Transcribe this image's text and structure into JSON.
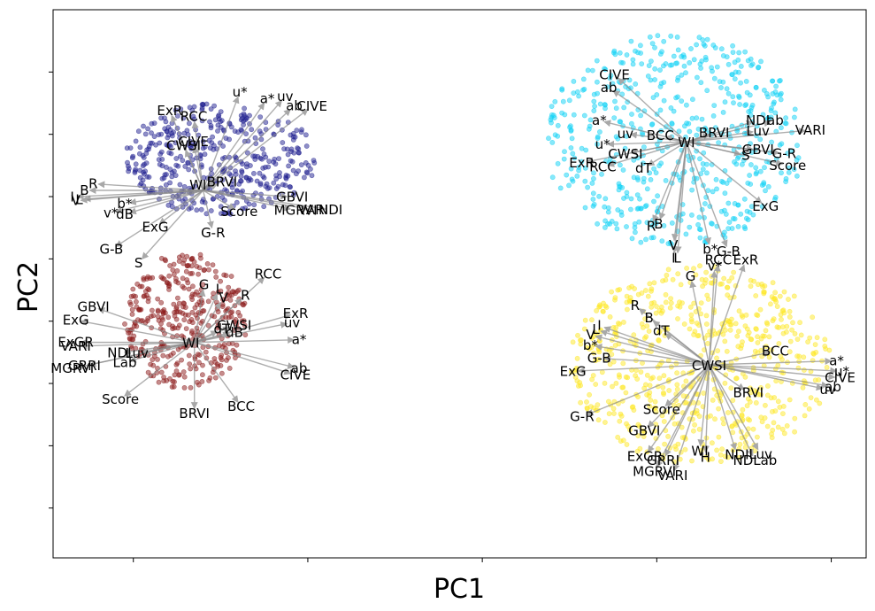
{
  "chart_data": {
    "type": "scatter",
    "title": "",
    "xlabel": "PC1",
    "ylabel": "PC2",
    "xlim": [
      -0.46,
      4.2
    ],
    "ylim": [
      -0.4,
      4.0
    ],
    "x_ticks": [
      0,
      1,
      2,
      3,
      4
    ],
    "y_ticks": [
      0,
      0.5,
      1,
      1.5,
      2,
      2.5,
      3,
      3.5
    ],
    "tick_labels_visible": false,
    "grid": false,
    "legend": "none",
    "arrow_color": "#8c8c8c",
    "series": [
      {
        "color": "#1f1f8f",
        "cx": 0.5,
        "cy": 2.8,
        "rx": 0.55,
        "ry": 0.45,
        "points": 420,
        "seed": 11
      },
      {
        "color": "#8b1a1a",
        "cx": 0.3,
        "cy": 1.5,
        "rx": 0.35,
        "ry": 0.55,
        "points": 380,
        "seed": 23
      },
      {
        "color": "#10d2f5",
        "cx": 3.1,
        "cy": 2.95,
        "rx": 0.75,
        "ry": 0.85,
        "points": 560,
        "seed": 37
      },
      {
        "color": "#fde725",
        "cx": 3.25,
        "cy": 1.15,
        "rx": 0.75,
        "ry": 0.8,
        "points": 640,
        "seed": 53
      }
    ],
    "biplots": [
      {
        "origin": [
          0.4,
          2.55
        ],
        "vectors": [
          {
            "label": "ExR",
            "x": 0.22,
            "y": 3.15
          },
          {
            "label": "RCC",
            "x": 0.35,
            "y": 3.1
          },
          {
            "label": "CIVE",
            "x": 0.35,
            "y": 2.9
          },
          {
            "label": "CWSI",
            "x": 0.3,
            "y": 2.87
          },
          {
            "label": "u*",
            "x": 0.6,
            "y": 3.3
          },
          {
            "label": "a*",
            "x": 0.75,
            "y": 3.25
          },
          {
            "label": "uv",
            "x": 0.85,
            "y": 3.27
          },
          {
            "label": "ab",
            "x": 0.9,
            "y": 3.2
          },
          {
            "label": "CIVE",
            "x": 1.0,
            "y": 3.2
          },
          {
            "label": "BRVI",
            "x": 0.48,
            "y": 2.6
          },
          {
            "label": "GBVI",
            "x": 0.88,
            "y": 2.5
          },
          {
            "label": "Score",
            "x": 0.58,
            "y": 2.4
          },
          {
            "label": "MGRVI",
            "x": 0.9,
            "y": 2.4
          },
          {
            "label": "VARI",
            "x": 1.0,
            "y": 2.4
          },
          {
            "label": "NDI",
            "x": 1.1,
            "y": 2.4
          },
          {
            "label": "G-R",
            "x": 0.45,
            "y": 2.25
          },
          {
            "label": "R",
            "x": -0.2,
            "y": 2.6
          },
          {
            "label": "B",
            "x": -0.25,
            "y": 2.55
          },
          {
            "label": "L",
            "x": -0.28,
            "y": 2.48
          },
          {
            "label": "I",
            "x": -0.32,
            "y": 2.5
          },
          {
            "label": "V",
            "x": -0.3,
            "y": 2.47
          },
          {
            "label": "b*",
            "x": -0.02,
            "y": 2.45
          },
          {
            "label": "v*",
            "x": -0.1,
            "y": 2.38
          },
          {
            "label": "dB",
            "x": -0.02,
            "y": 2.37
          },
          {
            "label": "ExG",
            "x": 0.15,
            "y": 2.28
          },
          {
            "label": "G-B",
            "x": -0.1,
            "y": 2.1
          },
          {
            "label": "S",
            "x": 0.05,
            "y": 2.0
          }
        ]
      },
      {
        "origin": [
          0.35,
          1.33
        ],
        "vectors": [
          {
            "label": "G",
            "x": 0.4,
            "y": 1.75
          },
          {
            "label": "L",
            "x": 0.48,
            "y": 1.72
          },
          {
            "label": "V",
            "x": 0.5,
            "y": 1.65
          },
          {
            "label": "R",
            "x": 0.62,
            "y": 1.68
          },
          {
            "label": "RCC",
            "x": 0.75,
            "y": 1.85
          },
          {
            "label": "ExR",
            "x": 0.9,
            "y": 1.55
          },
          {
            "label": "uv",
            "x": 0.88,
            "y": 1.48
          },
          {
            "label": "a*",
            "x": 0.92,
            "y": 1.35
          },
          {
            "label": "CWSI",
            "x": 0.55,
            "y": 1.45
          },
          {
            "label": "dT",
            "x": 0.48,
            "y": 1.42
          },
          {
            "label": "dB",
            "x": 0.55,
            "y": 1.4
          },
          {
            "label": "ab",
            "x": 0.92,
            "y": 1.13
          },
          {
            "label": "CIVE",
            "x": 0.9,
            "y": 1.08
          },
          {
            "label": "BCC",
            "x": 0.6,
            "y": 0.85
          },
          {
            "label": "BRVI",
            "x": 0.35,
            "y": 0.8
          },
          {
            "label": "Score",
            "x": -0.05,
            "y": 0.9
          },
          {
            "label": "GBVI",
            "x": -0.2,
            "y": 1.6
          },
          {
            "label": "ExG",
            "x": -0.3,
            "y": 1.5
          },
          {
            "label": "ExGR",
            "x": -0.3,
            "y": 1.33
          },
          {
            "label": "NDI",
            "x": -0.05,
            "y": 1.25
          },
          {
            "label": "Luv",
            "x": 0.05,
            "y": 1.25
          },
          {
            "label": "Lab",
            "x": -0.02,
            "y": 1.18
          },
          {
            "label": "GRRI",
            "x": -0.25,
            "y": 1.15
          },
          {
            "label": "MGRVI",
            "x": -0.32,
            "y": 1.13
          },
          {
            "label": "VARI",
            "x": -0.3,
            "y": 1.3
          }
        ]
      },
      {
        "origin": [
          3.17,
          2.94
        ],
        "vectors": [
          {
            "label": "CIVE",
            "x": 2.78,
            "y": 3.45
          },
          {
            "label": "ab",
            "x": 2.75,
            "y": 3.35
          },
          {
            "label": "a*",
            "x": 2.7,
            "y": 3.1
          },
          {
            "label": "uv",
            "x": 2.85,
            "y": 3.0
          },
          {
            "label": "u*",
            "x": 2.72,
            "y": 2.92
          },
          {
            "label": "BCC",
            "x": 3.05,
            "y": 2.98
          },
          {
            "label": "BRVI",
            "x": 3.3,
            "y": 3.0
          },
          {
            "label": "CWSI",
            "x": 2.85,
            "y": 2.85
          },
          {
            "label": "ExR",
            "x": 2.6,
            "y": 2.78
          },
          {
            "label": "RCC",
            "x": 2.72,
            "y": 2.75
          },
          {
            "label": "dT",
            "x": 2.95,
            "y": 2.75
          },
          {
            "label": "NDI",
            "x": 3.55,
            "y": 3.1
          },
          {
            "label": "ab",
            "x": 3.65,
            "y": 3.1
          },
          {
            "label": "Luv",
            "x": 3.55,
            "y": 3.02
          },
          {
            "label": "VARI",
            "x": 3.85,
            "y": 3.03
          },
          {
            "label": "GBVI",
            "x": 3.55,
            "y": 2.88
          },
          {
            "label": "S",
            "x": 3.48,
            "y": 2.84
          },
          {
            "label": "G-R",
            "x": 3.7,
            "y": 2.85
          },
          {
            "label": "Score",
            "x": 3.72,
            "y": 2.76
          },
          {
            "label": "ExG",
            "x": 3.6,
            "y": 2.45
          },
          {
            "label": "R",
            "x": 2.98,
            "y": 2.3
          },
          {
            "label": "B",
            "x": 3.02,
            "y": 2.32
          },
          {
            "label": "I",
            "x": 3.1,
            "y": 2.05
          },
          {
            "label": "V",
            "x": 3.1,
            "y": 2.15
          },
          {
            "label": "L",
            "x": 3.12,
            "y": 2.05
          },
          {
            "label": "b*",
            "x": 3.3,
            "y": 2.12
          },
          {
            "label": "G-B",
            "x": 3.4,
            "y": 2.1
          }
        ]
      },
      {
        "origin": [
          3.3,
          1.15
        ],
        "vectors": [
          {
            "label": "G",
            "x": 3.2,
            "y": 1.82
          },
          {
            "label": "v*",
            "x": 3.33,
            "y": 1.9
          },
          {
            "label": "RCC",
            "x": 3.35,
            "y": 1.95
          },
          {
            "label": "ExR",
            "x": 3.5,
            "y": 1.95
          },
          {
            "label": "R",
            "x": 2.9,
            "y": 1.6
          },
          {
            "label": "B",
            "x": 2.98,
            "y": 1.5
          },
          {
            "label": "dT",
            "x": 3.05,
            "y": 1.4
          },
          {
            "label": "I",
            "x": 2.7,
            "y": 1.45
          },
          {
            "label": "L",
            "x": 2.68,
            "y": 1.42
          },
          {
            "label": "V",
            "x": 2.65,
            "y": 1.38
          },
          {
            "label": "b*",
            "x": 2.65,
            "y": 1.3
          },
          {
            "label": "G-B",
            "x": 2.7,
            "y": 1.2
          },
          {
            "label": "ExG",
            "x": 2.55,
            "y": 1.1
          },
          {
            "label": "G-R",
            "x": 2.6,
            "y": 0.75
          },
          {
            "label": "BCC",
            "x": 3.65,
            "y": 1.25
          },
          {
            "label": "a*",
            "x": 4.0,
            "y": 1.18
          },
          {
            "label": "u*",
            "x": 4.03,
            "y": 1.1
          },
          {
            "label": "CIVE",
            "x": 4.02,
            "y": 1.05
          },
          {
            "label": "ab",
            "x": 3.98,
            "y": 0.98
          },
          {
            "label": "uv",
            "x": 3.95,
            "y": 0.96
          },
          {
            "label": "BRVI",
            "x": 3.5,
            "y": 0.95
          },
          {
            "label": "Score",
            "x": 3.05,
            "y": 0.82
          },
          {
            "label": "GBVI",
            "x": 2.95,
            "y": 0.65
          },
          {
            "label": "WI",
            "x": 3.25,
            "y": 0.5
          },
          {
            "label": "H",
            "x": 3.28,
            "y": 0.45
          },
          {
            "label": "NDI",
            "x": 3.45,
            "y": 0.47
          },
          {
            "label": "Luv",
            "x": 3.58,
            "y": 0.47
          },
          {
            "label": "NDLab",
            "x": 3.55,
            "y": 0.42
          },
          {
            "label": "ExGR",
            "x": 2.95,
            "y": 0.45
          },
          {
            "label": "GRRI",
            "x": 3.05,
            "y": 0.42
          },
          {
            "label": "MGRVI",
            "x": 3.0,
            "y": 0.33
          },
          {
            "label": "VARI",
            "x": 3.1,
            "y": 0.3
          }
        ]
      }
    ],
    "origin_labels": [
      {
        "label": "WI",
        "x": 0.37,
        "y": 2.6
      },
      {
        "label": "WI",
        "x": 0.33,
        "y": 1.33
      },
      {
        "label": "WI",
        "x": 3.17,
        "y": 2.94
      },
      {
        "label": "CWSI",
        "x": 3.3,
        "y": 1.15
      }
    ]
  }
}
